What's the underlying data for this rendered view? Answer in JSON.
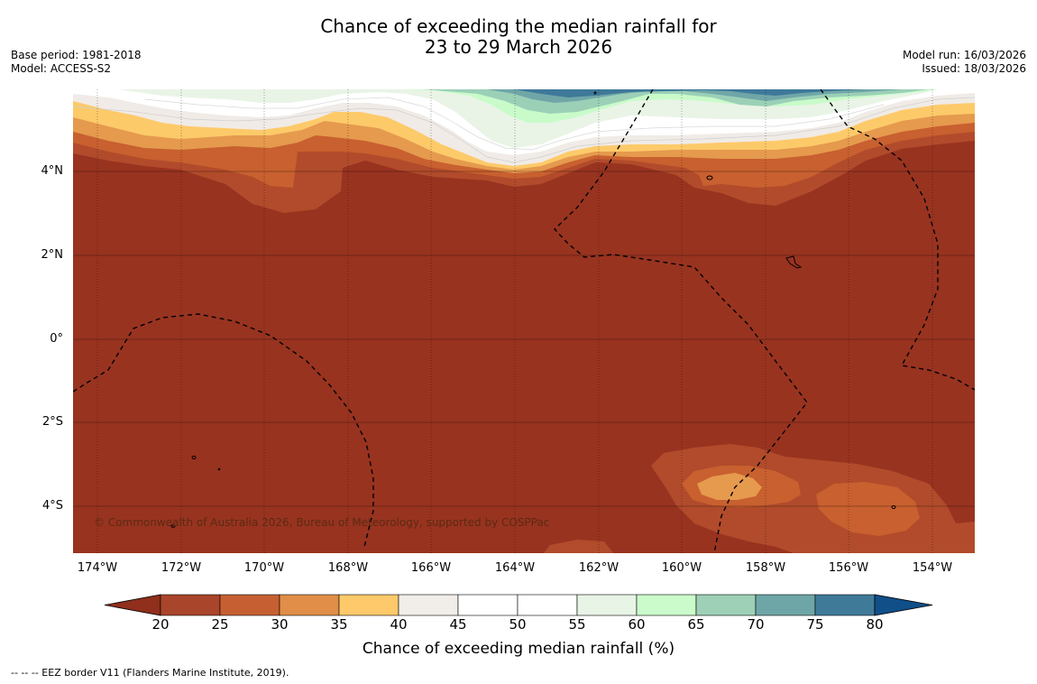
{
  "title": {
    "line1": "Chance of exceeding the median rainfall for",
    "line2": "23 to 29 March 2026"
  },
  "meta": {
    "base_period": "Base period: 1981-2018",
    "model": "Model: ACCESS-S2",
    "model_run": "Model run: 16/03/2026",
    "issued": "Issued: 18/03/2026"
  },
  "axes": {
    "lat_labels": [
      "4°N",
      "2°N",
      "0°",
      "2°S",
      "4°S"
    ],
    "lon_labels": [
      "174°W",
      "172°W",
      "170°W",
      "168°W",
      "166°W",
      "164°W",
      "162°W",
      "160°W",
      "158°W",
      "156°W",
      "154°W"
    ]
  },
  "copyright": "© Commonwealth of Australia 2026, Bureau of Meteorology, supported by COSPPac",
  "colorbar": {
    "label": "Chance of exceeding median rainfall (%)",
    "ticks": [
      "20",
      "25",
      "30",
      "35",
      "40",
      "45",
      "50",
      "55",
      "60",
      "65",
      "70",
      "75",
      "80"
    ],
    "colors": [
      "#8f2f1c",
      "#a9452a",
      "#c66033",
      "#e08e48",
      "#fdc96a",
      "#f1ede8",
      "#ffffff",
      "#ffffff",
      "#e8f4e6",
      "#cbfbcb",
      "#9dd0b6",
      "#6ea6a7",
      "#407a99",
      "#104f88"
    ]
  },
  "footnote": "--  --  -- EEZ border V11 (Flanders Marine Institute, 2019).",
  "colors": {
    "base": "#983320",
    "c25": "#b14b2b",
    "c30": "#c8602f",
    "c35": "#e59a4e",
    "c40": "#fdca6a",
    "c45": "#f0ebe6",
    "c55": "#e9f4e6",
    "c60": "#c9fbca",
    "c65": "#9bd0b7",
    "c70": "#70a6a8",
    "c75": "#3f7999"
  }
}
